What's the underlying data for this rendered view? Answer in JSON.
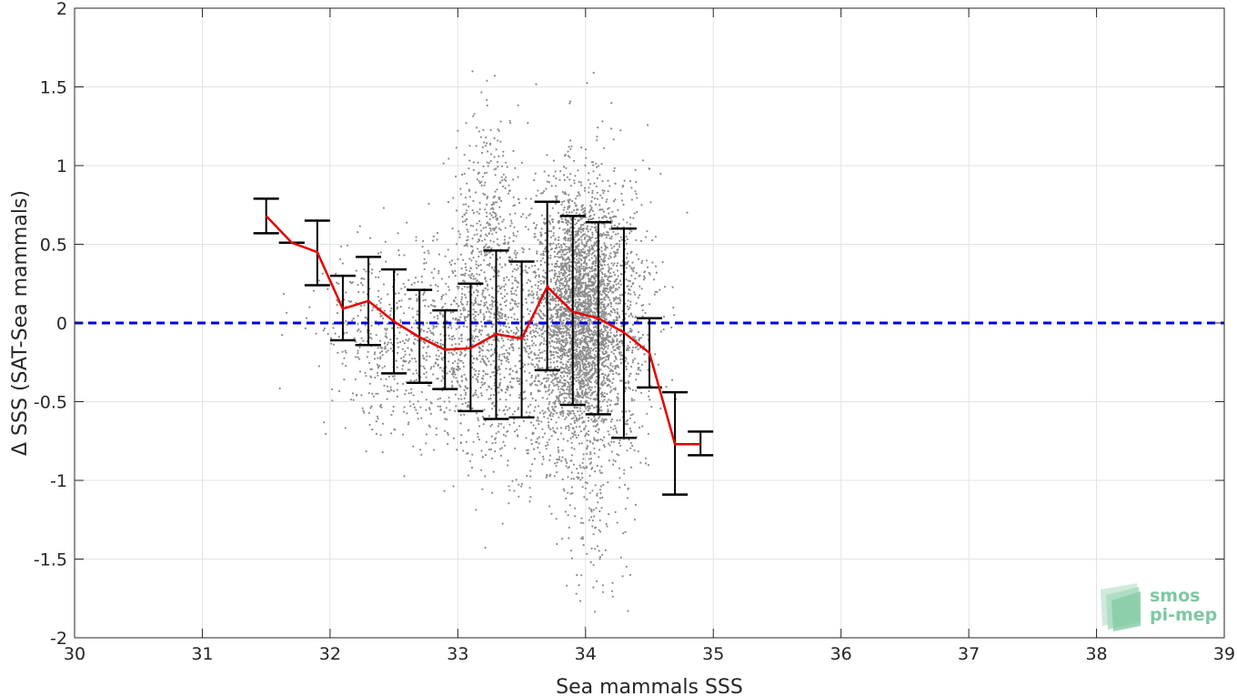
{
  "chart_data": {
    "type": "scatter",
    "xlabel": "Sea mammals SSS",
    "ylabel": "Δ SSS (SAT-Sea mammals)",
    "xlim": [
      30,
      39
    ],
    "ylim": [
      -2,
      2
    ],
    "xticks": [
      "30",
      "31",
      "32",
      "33",
      "34",
      "35",
      "36",
      "37",
      "38",
      "39"
    ],
    "yticks": [
      "-2",
      "-1.5",
      "-1",
      "-0.5",
      "0",
      "0.5",
      "1",
      "1.5",
      "2"
    ],
    "grid": true,
    "reference_line": {
      "y": 0,
      "style": "dashed",
      "color": "#0000e6"
    },
    "scatter_color": "#8c8c8c",
    "mean_line_color": "#e60000",
    "errorbar_color": "#000000",
    "series": [
      {
        "type": "line_with_errorbars",
        "x": [
          31.5,
          31.7,
          31.9,
          32.1,
          32.3,
          32.5,
          32.7,
          32.9,
          33.1,
          33.3,
          33.5,
          33.7,
          33.9,
          34.1,
          34.3,
          34.5,
          34.7,
          34.9
        ],
        "y": [
          0.68,
          0.51,
          0.45,
          0.09,
          0.14,
          0.01,
          -0.09,
          -0.17,
          -0.16,
          -0.07,
          -0.1,
          0.23,
          0.07,
          0.03,
          -0.06,
          -0.19,
          -0.77,
          -0.77
        ],
        "err_low": [
          0.57,
          0.51,
          0.24,
          -0.11,
          -0.14,
          -0.32,
          -0.38,
          -0.42,
          -0.56,
          -0.61,
          -0.6,
          -0.3,
          -0.52,
          -0.58,
          -0.73,
          -0.41,
          -1.09,
          -0.84
        ],
        "err_high": [
          0.79,
          0.51,
          0.65,
          0.3,
          0.42,
          0.34,
          0.21,
          0.08,
          0.25,
          0.46,
          0.39,
          0.77,
          0.68,
          0.64,
          0.6,
          0.03,
          -0.44,
          -0.69
        ]
      }
    ],
    "scatter_clusters": [
      {
        "x_center": 33.95,
        "x_spread": 0.17,
        "y_center": 0.02,
        "y_spread": 0.42,
        "n": 3400
      },
      {
        "x_center": 33.3,
        "x_spread": 0.25,
        "y_center": -0.1,
        "y_spread": 0.4,
        "n": 1000
      },
      {
        "x_center": 33.25,
        "x_spread": 0.12,
        "y_center": 0.75,
        "y_spread": 0.3,
        "n": 250
      },
      {
        "x_center": 32.7,
        "x_spread": 0.35,
        "y_center": -0.15,
        "y_spread": 0.28,
        "n": 650
      },
      {
        "x_center": 34.3,
        "x_spread": 0.15,
        "y_center": 0.1,
        "y_spread": 0.5,
        "n": 350
      },
      {
        "x_center": 34.1,
        "x_spread": 0.12,
        "y_center": -1.2,
        "y_spread": 0.35,
        "n": 120
      },
      {
        "x_center": 32.2,
        "x_spread": 0.15,
        "y_center": 0.05,
        "y_spread": 0.25,
        "n": 80
      }
    ]
  },
  "logo": {
    "line1": "smos",
    "line2": "pi-mep"
  }
}
